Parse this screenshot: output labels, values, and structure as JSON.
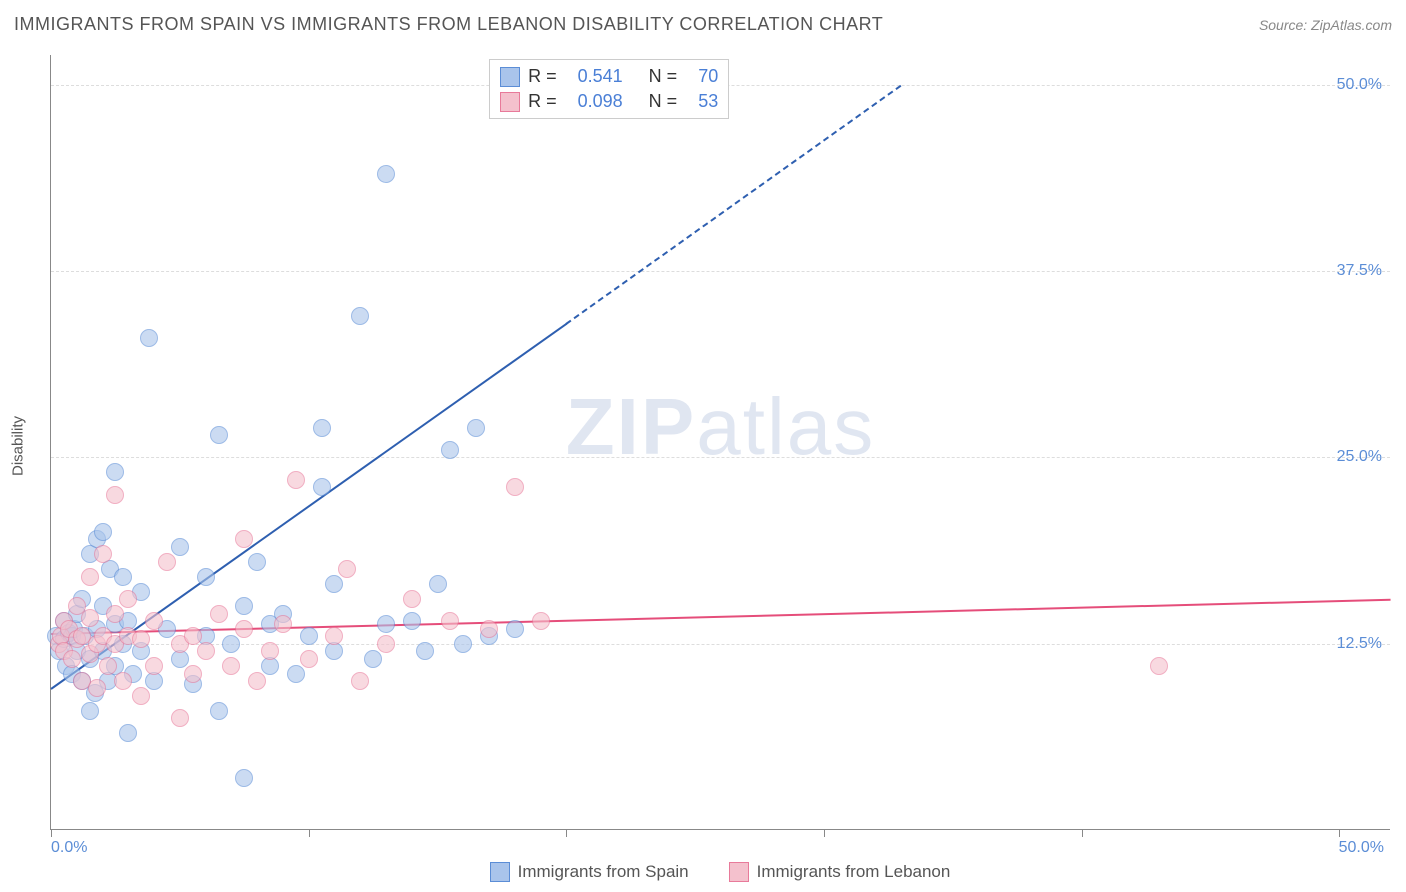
{
  "header": {
    "title": "IMMIGRANTS FROM SPAIN VS IMMIGRANTS FROM LEBANON DISABILITY CORRELATION CHART",
    "source": "Source: ZipAtlas.com"
  },
  "watermark": {
    "bold": "ZIP",
    "light": "atlas"
  },
  "ylabel": "Disability",
  "chart": {
    "type": "scatter",
    "xlim": [
      0,
      52
    ],
    "ylim": [
      0,
      52
    ],
    "yticks": [
      12.5,
      25.0,
      37.5,
      50.0
    ],
    "ytick_labels": [
      "12.5%",
      "25.0%",
      "37.5%",
      "50.0%"
    ],
    "xticks": [
      0,
      10,
      20,
      30,
      40,
      50
    ],
    "x_start_label": "0.0%",
    "x_end_label": "50.0%",
    "background_color": "#ffffff",
    "grid_color": "#dddddd",
    "marker_radius": 9,
    "marker_opacity": 0.6,
    "series": [
      {
        "name": "Immigrants from Spain",
        "fill": "#a9c4eb",
        "stroke": "#5b8dd6",
        "line_color": "#2e5fb0",
        "R": "0.541",
        "N": "70",
        "trend": {
          "x1": 0,
          "y1": 9.5,
          "x2": 20,
          "y2": 34,
          "dash_to_x": 33,
          "dash_to_y": 50
        },
        "points": [
          [
            0.2,
            13.0
          ],
          [
            0.3,
            12.0
          ],
          [
            0.5,
            12.8
          ],
          [
            0.5,
            14.0
          ],
          [
            0.6,
            11.0
          ],
          [
            0.7,
            13.2
          ],
          [
            0.8,
            13.0
          ],
          [
            0.8,
            10.5
          ],
          [
            0.9,
            13.5
          ],
          [
            1.0,
            14.5
          ],
          [
            1.0,
            12.0
          ],
          [
            1.2,
            10.0
          ],
          [
            1.2,
            15.5
          ],
          [
            1.3,
            13.0
          ],
          [
            1.5,
            8.0
          ],
          [
            1.5,
            11.5
          ],
          [
            1.5,
            18.5
          ],
          [
            1.7,
            9.2
          ],
          [
            1.8,
            13.5
          ],
          [
            1.8,
            19.5
          ],
          [
            2.0,
            12.0
          ],
          [
            2.0,
            15.0
          ],
          [
            2.0,
            20.0
          ],
          [
            2.2,
            10.0
          ],
          [
            2.3,
            17.5
          ],
          [
            2.5,
            11.0
          ],
          [
            2.5,
            13.8
          ],
          [
            2.5,
            24.0
          ],
          [
            2.8,
            12.5
          ],
          [
            2.8,
            17.0
          ],
          [
            3.0,
            6.5
          ],
          [
            3.0,
            14.0
          ],
          [
            3.2,
            10.5
          ],
          [
            3.5,
            12.0
          ],
          [
            3.5,
            16.0
          ],
          [
            3.8,
            33.0
          ],
          [
            4.0,
            10.0
          ],
          [
            4.5,
            13.5
          ],
          [
            5.0,
            11.5
          ],
          [
            5.0,
            19.0
          ],
          [
            5.5,
            9.8
          ],
          [
            6.0,
            13.0
          ],
          [
            6.0,
            17.0
          ],
          [
            6.5,
            8.0
          ],
          [
            6.5,
            26.5
          ],
          [
            7.0,
            12.5
          ],
          [
            7.5,
            15.0
          ],
          [
            7.5,
            3.5
          ],
          [
            8.0,
            18.0
          ],
          [
            8.5,
            11.0
          ],
          [
            8.5,
            13.8
          ],
          [
            9.0,
            14.5
          ],
          [
            9.5,
            10.5
          ],
          [
            10.0,
            13.0
          ],
          [
            10.5,
            23.0
          ],
          [
            10.5,
            27.0
          ],
          [
            11.0,
            12.0
          ],
          [
            11.0,
            16.5
          ],
          [
            12.0,
            34.5
          ],
          [
            12.5,
            11.5
          ],
          [
            13.0,
            13.8
          ],
          [
            13.0,
            44.0
          ],
          [
            14.0,
            14.0
          ],
          [
            14.5,
            12.0
          ],
          [
            15.0,
            16.5
          ],
          [
            15.5,
            25.5
          ],
          [
            16.0,
            12.5
          ],
          [
            16.5,
            27.0
          ],
          [
            17.0,
            13.0
          ],
          [
            18.0,
            13.5
          ]
        ]
      },
      {
        "name": "Immigrants from Lebanon",
        "fill": "#f4c1cd",
        "stroke": "#e87a9a",
        "line_color": "#e54d7a",
        "R": "0.098",
        "N": "53",
        "trend": {
          "x1": 0,
          "y1": 13.2,
          "x2": 52,
          "y2": 15.5
        },
        "points": [
          [
            0.3,
            12.5
          ],
          [
            0.4,
            13.0
          ],
          [
            0.5,
            12.0
          ],
          [
            0.5,
            14.0
          ],
          [
            0.7,
            13.5
          ],
          [
            0.8,
            11.5
          ],
          [
            1.0,
            12.8
          ],
          [
            1.0,
            15.0
          ],
          [
            1.2,
            10.0
          ],
          [
            1.2,
            13.0
          ],
          [
            1.5,
            11.8
          ],
          [
            1.5,
            14.2
          ],
          [
            1.5,
            17.0
          ],
          [
            1.8,
            9.5
          ],
          [
            1.8,
            12.5
          ],
          [
            2.0,
            13.0
          ],
          [
            2.0,
            18.5
          ],
          [
            2.2,
            11.0
          ],
          [
            2.5,
            12.5
          ],
          [
            2.5,
            14.5
          ],
          [
            2.5,
            22.5
          ],
          [
            2.8,
            10.0
          ],
          [
            3.0,
            13.0
          ],
          [
            3.0,
            15.5
          ],
          [
            3.5,
            9.0
          ],
          [
            3.5,
            12.8
          ],
          [
            4.0,
            11.0
          ],
          [
            4.0,
            14.0
          ],
          [
            4.5,
            18.0
          ],
          [
            5.0,
            7.5
          ],
          [
            5.0,
            12.5
          ],
          [
            5.5,
            10.5
          ],
          [
            5.5,
            13.0
          ],
          [
            6.0,
            12.0
          ],
          [
            6.5,
            14.5
          ],
          [
            7.0,
            11.0
          ],
          [
            7.5,
            13.5
          ],
          [
            7.5,
            19.5
          ],
          [
            8.0,
            10.0
          ],
          [
            8.5,
            12.0
          ],
          [
            9.0,
            13.8
          ],
          [
            9.5,
            23.5
          ],
          [
            10.0,
            11.5
          ],
          [
            11.0,
            13.0
          ],
          [
            11.5,
            17.5
          ],
          [
            12.0,
            10.0
          ],
          [
            13.0,
            12.5
          ],
          [
            14.0,
            15.5
          ],
          [
            15.5,
            14.0
          ],
          [
            17.0,
            13.5
          ],
          [
            18.0,
            23.0
          ],
          [
            19.0,
            14.0
          ],
          [
            43.0,
            11.0
          ]
        ]
      }
    ]
  },
  "bottom_legend": {
    "items": [
      {
        "label": "Immigrants from Spain",
        "fill": "#a9c4eb",
        "stroke": "#5b8dd6"
      },
      {
        "label": "Immigrants from Lebanon",
        "fill": "#f4c1cd",
        "stroke": "#e87a9a"
      }
    ]
  }
}
